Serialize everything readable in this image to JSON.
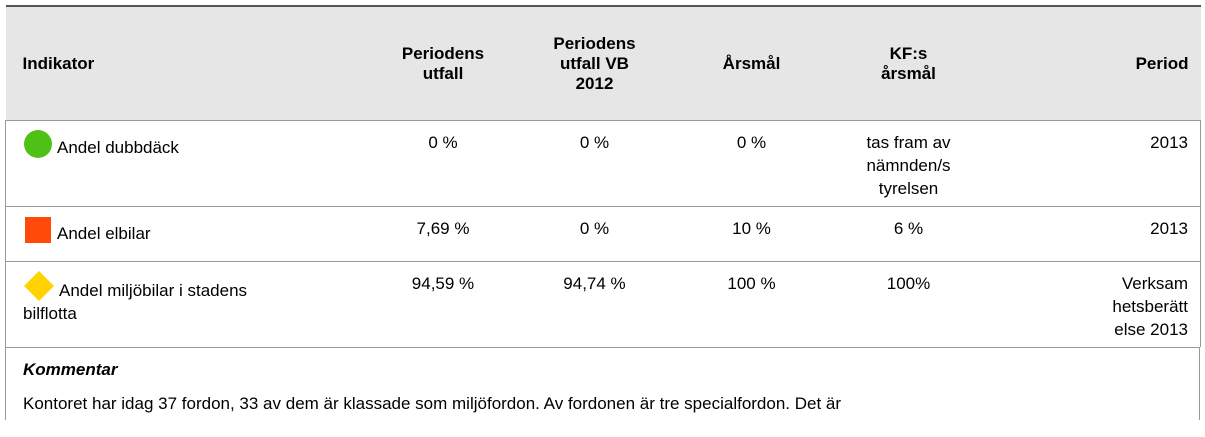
{
  "table": {
    "header": [
      [
        "Indikator"
      ],
      [
        "Periodens",
        "utfall"
      ],
      [
        "Periodens",
        "utfall VB",
        "2012"
      ],
      [
        "Årsmål"
      ],
      [
        "KF:s",
        "årsmål"
      ],
      [
        "Period"
      ]
    ],
    "rows": [
      {
        "indicator": [
          "Andel dubbdäck"
        ],
        "cells": [
          [
            "0 %"
          ],
          [
            "0 %"
          ],
          [
            "0 %"
          ],
          [
            "tas fram av",
            "nämnden/s",
            "tyrelsen"
          ],
          [
            "2013"
          ]
        ]
      },
      {
        "indicator": [
          "Andel elbilar"
        ],
        "cells": [
          [
            "7,69 %"
          ],
          [
            "0 %"
          ],
          [
            "10 %"
          ],
          [
            "6 %"
          ],
          [
            "2013"
          ]
        ]
      },
      {
        "indicator": [
          "Andel miljöbilar i stadens",
          "bilflotta"
        ],
        "cells": [
          [
            "94,59 %"
          ],
          [
            "94,74 %"
          ],
          [
            "100 %"
          ],
          [
            "100%"
          ],
          [
            "Verksam",
            "hetsberätt",
            "else 2013"
          ]
        ]
      }
    ]
  },
  "comment": {
    "title": "Kommentar",
    "text": "Kontoret har idag 37 fordon, 33 av dem är klassade som miljöfordon. Av fordonen är tre specialfordon. Det är"
  }
}
